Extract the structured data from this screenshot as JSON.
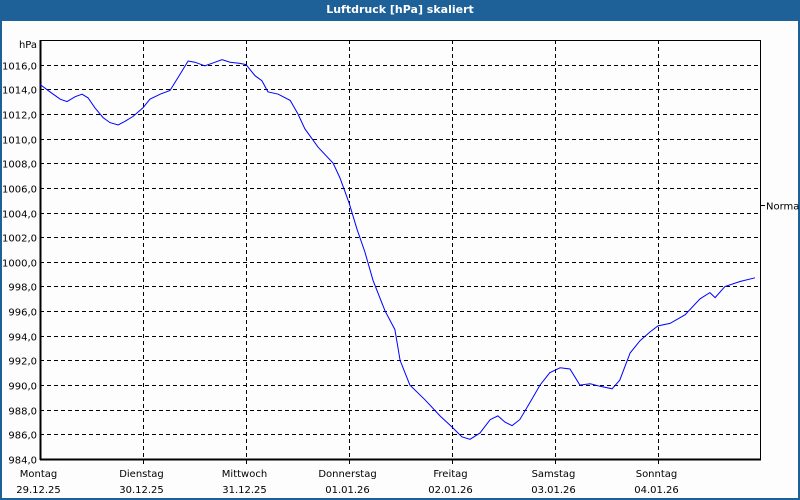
{
  "window": {
    "title": "Luftdruck [hPa] skaliert"
  },
  "chart_data": {
    "type": "line",
    "title": "Luftdruck [hPa] skaliert",
    "ylabel": "hPa",
    "ylim": [
      984,
      1018
    ],
    "yticks": [
      "1016,0",
      "1014,0",
      "1012,0",
      "1010,0",
      "1008,0",
      "1006,0",
      "1004,0",
      "1002,0",
      "1000,0",
      "998,0",
      "996,0",
      "994,0",
      "992,0",
      "990,0",
      "988,0",
      "986,0",
      "984,0"
    ],
    "ytick_values": [
      1016,
      1014,
      1012,
      1010,
      1008,
      1006,
      1004,
      1002,
      1000,
      998,
      996,
      994,
      992,
      990,
      988,
      986,
      984
    ],
    "xlim_hours": [
      0,
      168
    ],
    "xticks": [
      {
        "day": "Montag",
        "date": "29.12.25"
      },
      {
        "day": "Dienstag",
        "date": "30.12.25"
      },
      {
        "day": "Mittwoch",
        "date": "31.12.25"
      },
      {
        "day": "Donnerstag",
        "date": "01.01.26"
      },
      {
        "day": "Freitag",
        "date": "02.01.26"
      },
      {
        "day": "Samstag",
        "date": "03.01.26"
      },
      {
        "day": "Sonntag",
        "date": "04.01.26"
      }
    ],
    "grid": true,
    "reference": {
      "label": "Normal",
      "value": 1004.6
    },
    "series": [
      {
        "name": "Luftdruck",
        "color": "#0000ff",
        "x_hours": [
          0,
          2.3,
          4.7,
          6.3,
          8.2,
          9.8,
          11.2,
          12.8,
          14.7,
          16.3,
          18.2,
          19.8,
          21.7,
          24,
          25.6,
          28,
          30.3,
          32.6,
          34.5,
          36.1,
          38.4,
          40.8,
          42.4,
          44.3,
          46.6,
          48,
          50.1,
          51.7,
          53.1,
          55.5,
          58.3,
          60.1,
          61.7,
          64.8,
          68.3,
          69.9,
          72,
          73.9,
          75.7,
          77.6,
          80.4,
          82.7,
          83.9,
          86.2,
          89.7,
          93.2,
          96,
          98.3,
          100.2,
          102.5,
          104.9,
          106.7,
          108.3,
          110,
          111.8,
          114.2,
          116.5,
          118.8,
          121.2,
          123.5,
          125.8,
          128.2,
          130.5,
          133.3,
          135.1,
          137.5,
          139.8,
          142.1,
          144,
          146.8,
          150.3,
          153.8,
          156.1,
          157.3,
          159.6,
          163.1,
          166.6
        ],
        "values": [
          1014.4,
          1013.8,
          1013.2,
          1013.0,
          1013.4,
          1013.6,
          1013.3,
          1012.5,
          1011.7,
          1011.3,
          1011.1,
          1011.4,
          1011.8,
          1012.5,
          1013.2,
          1013.6,
          1013.9,
          1015.2,
          1016.3,
          1016.2,
          1015.9,
          1016.2,
          1016.4,
          1016.2,
          1016.1,
          1016.0,
          1015.1,
          1014.7,
          1013.8,
          1013.6,
          1013.1,
          1012.0,
          1010.8,
          1009.3,
          1008.0,
          1006.8,
          1004.8,
          1002.6,
          1000.8,
          998.5,
          996.0,
          994.5,
          992.0,
          990.0,
          988.8,
          987.5,
          986.6,
          985.8,
          985.6,
          986.1,
          987.2,
          987.5,
          987.0,
          986.7,
          987.2,
          988.6,
          990.0,
          991.0,
          991.4,
          991.3,
          990.0,
          990.1,
          989.9,
          989.7,
          990.4,
          992.6,
          993.6,
          994.3,
          994.8,
          995.0,
          995.7,
          997.0,
          997.5,
          997.1,
          998.0,
          998.4,
          998.7
        ]
      }
    ]
  }
}
